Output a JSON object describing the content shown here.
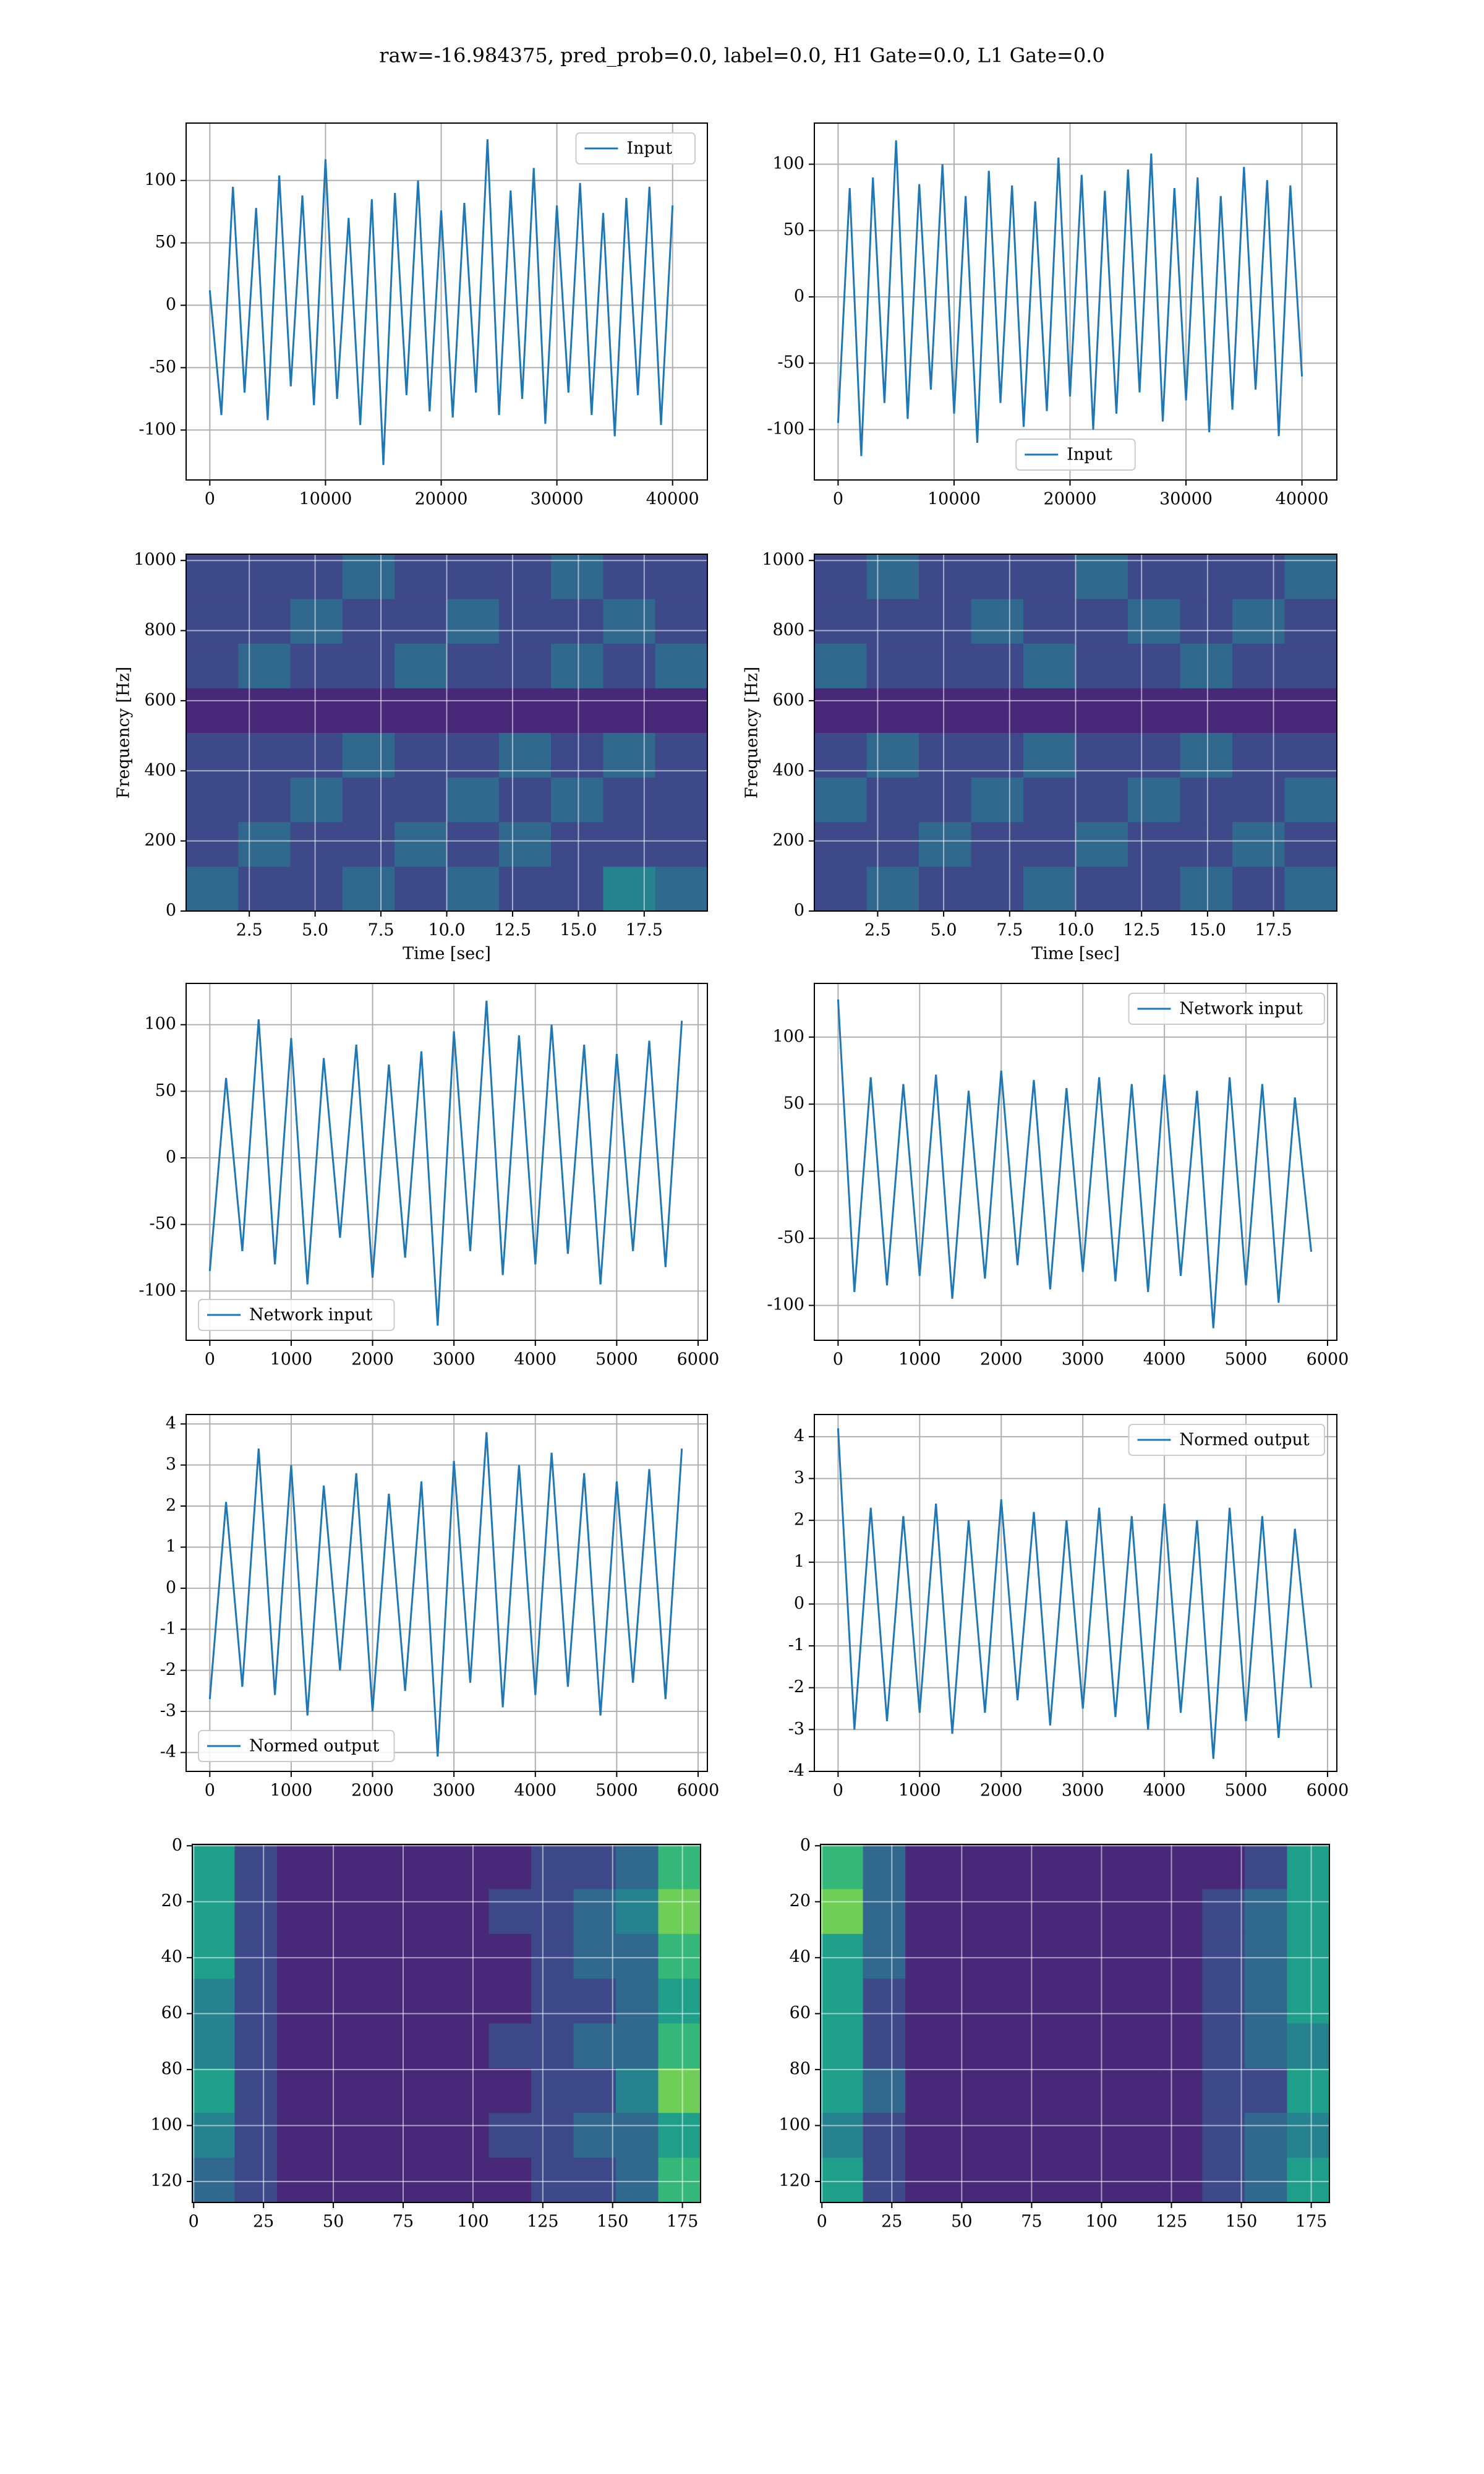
{
  "title": "raw=-16.984375, pred_prob=0.0, label=0.0, H1 Gate=0.0, L1 Gate=0.0",
  "chart_data": [
    {
      "type": "line",
      "x": [
        0,
        1000,
        2000,
        3000,
        4000,
        5000,
        6000,
        7000,
        8000,
        9000,
        10000,
        11000,
        12000,
        13000,
        14000,
        15000,
        16000,
        17000,
        18000,
        19000,
        20000,
        21000,
        22000,
        23000,
        24000,
        25000,
        26000,
        27000,
        28000,
        29000,
        30000,
        31000,
        32000,
        33000,
        34000,
        35000,
        36000,
        37000,
        38000,
        39000,
        40000
      ],
      "series": [
        {
          "name": "Input",
          "color": "#1f77b4",
          "values": [
            12,
            -88,
            95,
            -70,
            78,
            -92,
            104,
            -65,
            88,
            -80,
            117,
            -75,
            70,
            -96,
            85,
            -128,
            90,
            -72,
            100,
            -85,
            76,
            -90,
            82,
            -70,
            133,
            -88,
            92,
            -75,
            110,
            -95,
            80,
            -70,
            98,
            -88,
            74,
            -105,
            86,
            -72,
            95,
            -96,
            80
          ]
        }
      ],
      "xlim": [
        -2048,
        43007
      ],
      "ylim": [
        -140,
        146
      ],
      "xticks": [
        0,
        10000,
        20000,
        30000,
        40000
      ],
      "yticks": [
        -100,
        -50,
        0,
        50,
        100
      ],
      "grid": true,
      "legend": "upper right"
    },
    {
      "type": "line",
      "x": [
        0,
        1000,
        2000,
        3000,
        4000,
        5000,
        6000,
        7000,
        8000,
        9000,
        10000,
        11000,
        12000,
        13000,
        14000,
        15000,
        16000,
        17000,
        18000,
        19000,
        20000,
        21000,
        22000,
        23000,
        24000,
        25000,
        26000,
        27000,
        28000,
        29000,
        30000,
        31000,
        32000,
        33000,
        34000,
        35000,
        36000,
        37000,
        38000,
        39000,
        40000
      ],
      "series": [
        {
          "name": "Input",
          "color": "#1f77b4",
          "values": [
            -95,
            82,
            -120,
            90,
            -80,
            118,
            -92,
            85,
            -70,
            100,
            -88,
            76,
            -110,
            95,
            -80,
            84,
            -98,
            72,
            -86,
            105,
            -75,
            92,
            -100,
            80,
            -88,
            96,
            -72,
            108,
            -94,
            82,
            -78,
            90,
            -102,
            76,
            -85,
            98,
            -70,
            88,
            -105,
            84,
            -60
          ]
        }
      ],
      "xlim": [
        -2048,
        43007
      ],
      "ylim": [
        -138,
        131
      ],
      "xticks": [
        0,
        10000,
        20000,
        30000,
        40000
      ],
      "yticks": [
        -100,
        -50,
        0,
        50,
        100
      ],
      "grid": true,
      "legend": "lower center"
    },
    {
      "type": "heatmap",
      "origin": "lower",
      "colormap": "viridis",
      "xlabel": "Time [sec]",
      "ylabel": "Frequency [Hz]",
      "xlim": [
        0.1,
        19.9
      ],
      "ylim": [
        0,
        1018
      ],
      "xticks": [
        2.5,
        {
          "value": 5,
          "label": "5.0"
        },
        7.5,
        {
          "value": 10,
          "label": "10.0"
        },
        12.5,
        {
          "value": 15,
          "label": "15.0"
        },
        17.5
      ],
      "yticks": [
        0,
        200,
        400,
        600,
        800,
        1000
      ],
      "grid": true,
      "z": [
        [
          0.3,
          0.2,
          0.25,
          0.35,
          0.2,
          0.3,
          0.25,
          0.2,
          0.4,
          0.3
        ],
        [
          0.2,
          0.3,
          0.2,
          0.25,
          0.3,
          0.2,
          0.3,
          0.25,
          0.2,
          0.25
        ],
        [
          0.25,
          0.2,
          0.3,
          0.2,
          0.25,
          0.3,
          0.2,
          0.3,
          0.25,
          0.2
        ],
        [
          0.2,
          0.25,
          0.2,
          0.3,
          0.2,
          0.25,
          0.3,
          0.2,
          0.3,
          0.25
        ],
        [
          0.1,
          0.1,
          0.12,
          0.1,
          0.1,
          0.12,
          0.1,
          0.1,
          0.12,
          0.1
        ],
        [
          0.25,
          0.3,
          0.2,
          0.25,
          0.3,
          0.2,
          0.25,
          0.3,
          0.2,
          0.3
        ],
        [
          0.2,
          0.25,
          0.3,
          0.2,
          0.25,
          0.3,
          0.2,
          0.25,
          0.3,
          0.2
        ],
        [
          0.25,
          0.2,
          0.25,
          0.3,
          0.2,
          0.25,
          0.2,
          0.3,
          0.25,
          0.2
        ]
      ]
    },
    {
      "type": "heatmap",
      "origin": "lower",
      "colormap": "viridis",
      "xlabel": "Time [sec]",
      "ylabel": "Frequency [Hz]",
      "xlim": [
        0.1,
        19.9
      ],
      "ylim": [
        0,
        1018
      ],
      "xticks": [
        2.5,
        {
          "value": 5,
          "label": "5.0"
        },
        7.5,
        {
          "value": 10,
          "label": "10.0"
        },
        12.5,
        {
          "value": 15,
          "label": "15.0"
        },
        17.5
      ],
      "yticks": [
        0,
        200,
        400,
        600,
        800,
        1000
      ],
      "grid": true,
      "z": [
        [
          0.25,
          0.3,
          0.2,
          0.25,
          0.3,
          0.2,
          0.25,
          0.3,
          0.2,
          0.3
        ],
        [
          0.2,
          0.25,
          0.3,
          0.2,
          0.25,
          0.3,
          0.2,
          0.25,
          0.3,
          0.2
        ],
        [
          0.3,
          0.2,
          0.25,
          0.3,
          0.2,
          0.25,
          0.3,
          0.2,
          0.25,
          0.35
        ],
        [
          0.2,
          0.3,
          0.2,
          0.25,
          0.3,
          0.2,
          0.25,
          0.3,
          0.2,
          0.25
        ],
        [
          0.1,
          0.12,
          0.1,
          0.1,
          0.12,
          0.1,
          0.1,
          0.12,
          0.1,
          0.1
        ],
        [
          0.3,
          0.2,
          0.25,
          0.2,
          0.3,
          0.25,
          0.2,
          0.3,
          0.25,
          0.2
        ],
        [
          0.2,
          0.25,
          0.2,
          0.3,
          0.2,
          0.25,
          0.3,
          0.2,
          0.35,
          0.25
        ],
        [
          0.25,
          0.3,
          0.25,
          0.2,
          0.25,
          0.3,
          0.2,
          0.25,
          0.2,
          0.3
        ]
      ]
    },
    {
      "type": "line",
      "x": [
        0,
        200,
        400,
        600,
        800,
        1000,
        1200,
        1400,
        1600,
        1800,
        2000,
        2200,
        2400,
        2600,
        2800,
        3000,
        3200,
        3400,
        3600,
        3800,
        4000,
        4200,
        4400,
        4600,
        4800,
        5000,
        5200,
        5400,
        5600,
        5800
      ],
      "series": [
        {
          "name": "Network input",
          "color": "#1f77b4",
          "values": [
            -85,
            60,
            -70,
            104,
            -80,
            90,
            -95,
            75,
            -60,
            85,
            -90,
            70,
            -75,
            80,
            -126,
            95,
            -70,
            118,
            -88,
            92,
            -80,
            100,
            -72,
            85,
            -95,
            78,
            -70,
            88,
            -82,
            103
          ]
        }
      ],
      "xlim": [
        -291,
        6114
      ],
      "ylim": [
        -137,
        131
      ],
      "xticks": [
        0,
        1000,
        2000,
        3000,
        4000,
        5000,
        6000
      ],
      "yticks": [
        -100,
        -50,
        0,
        50,
        100
      ],
      "grid": true,
      "legend": "lower left"
    },
    {
      "type": "line",
      "x": [
        0,
        200,
        400,
        600,
        800,
        1000,
        1200,
        1400,
        1600,
        1800,
        2000,
        2200,
        2400,
        2600,
        2800,
        3000,
        3200,
        3400,
        3600,
        3800,
        4000,
        4200,
        4400,
        4600,
        4800,
        5000,
        5200,
        5400,
        5600,
        5800
      ],
      "series": [
        {
          "name": "Network input",
          "color": "#1f77b4",
          "values": [
            128,
            -90,
            70,
            -85,
            65,
            -78,
            72,
            -95,
            60,
            -80,
            75,
            -70,
            68,
            -88,
            62,
            -75,
            70,
            -82,
            65,
            -90,
            72,
            -78,
            60,
            -117,
            70,
            -85,
            65,
            -98,
            55,
            -60
          ]
        }
      ],
      "xlim": [
        -291,
        6114
      ],
      "ylim": [
        -126,
        140
      ],
      "xticks": [
        0,
        1000,
        2000,
        3000,
        4000,
        5000,
        6000
      ],
      "yticks": [
        -100,
        -50,
        0,
        50,
        100
      ],
      "grid": true,
      "legend": "upper right"
    },
    {
      "type": "line",
      "x": [
        0,
        200,
        400,
        600,
        800,
        1000,
        1200,
        1400,
        1600,
        1800,
        2000,
        2200,
        2400,
        2600,
        2800,
        3000,
        3200,
        3400,
        3600,
        3800,
        4000,
        4200,
        4400,
        4600,
        4800,
        5000,
        5200,
        5400,
        5600,
        5800
      ],
      "series": [
        {
          "name": "Normed output",
          "color": "#1f77b4",
          "values": [
            -2.7,
            2.1,
            -2.4,
            3.4,
            -2.6,
            3.0,
            -3.1,
            2.5,
            -2.0,
            2.8,
            -3.0,
            2.3,
            -2.5,
            2.6,
            -4.1,
            3.1,
            -2.3,
            3.8,
            -2.9,
            3.0,
            -2.6,
            3.3,
            -2.4,
            2.8,
            -3.1,
            2.6,
            -2.3,
            2.9,
            -2.7,
            3.4
          ]
        }
      ],
      "xlim": [
        -291,
        6114
      ],
      "ylim": [
        -4.46,
        4.23
      ],
      "xticks": [
        0,
        1000,
        2000,
        3000,
        4000,
        5000,
        6000
      ],
      "yticks": [
        -4,
        -3,
        -2,
        -1,
        0,
        1,
        2,
        3,
        4
      ],
      "grid": true,
      "legend": "lower left"
    },
    {
      "type": "line",
      "x": [
        0,
        200,
        400,
        600,
        800,
        1000,
        1200,
        1400,
        1600,
        1800,
        2000,
        2200,
        2400,
        2600,
        2800,
        3000,
        3200,
        3400,
        3600,
        3800,
        4000,
        4200,
        4400,
        4600,
        4800,
        5000,
        5200,
        5400,
        5600,
        5800
      ],
      "series": [
        {
          "name": "Normed output",
          "color": "#1f77b4",
          "values": [
            4.2,
            -3.0,
            2.3,
            -2.8,
            2.1,
            -2.6,
            2.4,
            -3.1,
            2.0,
            -2.6,
            2.5,
            -2.3,
            2.2,
            -2.9,
            2.0,
            -2.5,
            2.3,
            -2.7,
            2.1,
            -3.0,
            2.4,
            -2.6,
            2.0,
            -3.7,
            2.3,
            -2.8,
            2.1,
            -3.2,
            1.8,
            -2.0
          ]
        }
      ],
      "xlim": [
        -291,
        6114
      ],
      "ylim": [
        -4.0,
        4.53
      ],
      "xticks": [
        0,
        1000,
        2000,
        3000,
        4000,
        5000,
        6000
      ],
      "yticks": [
        -4,
        -3,
        -2,
        -1,
        0,
        1,
        2,
        3,
        4
      ],
      "grid": true,
      "legend": "upper right"
    },
    {
      "type": "heatmap",
      "origin": "upper",
      "colormap": "viridis",
      "xlim": [
        -0.5,
        181.5
      ],
      "ylim": [
        127.5,
        -0.5
      ],
      "xticks": [
        0,
        25,
        50,
        75,
        100,
        125,
        150,
        175
      ],
      "yticks": [
        0,
        20,
        40,
        60,
        80,
        100,
        120
      ],
      "grid": true,
      "z": [
        [
          0.5,
          0.2,
          0.15,
          0.12,
          0.12,
          0.1,
          0.12,
          0.15,
          0.2,
          0.25,
          0.35,
          0.7
        ],
        [
          0.6,
          0.25,
          0.15,
          0.12,
          0.1,
          0.12,
          0.15,
          0.2,
          0.25,
          0.3,
          0.4,
          0.8
        ],
        [
          0.55,
          0.2,
          0.12,
          0.1,
          0.12,
          0.1,
          0.12,
          0.15,
          0.2,
          0.3,
          0.35,
          0.65
        ],
        [
          0.4,
          0.2,
          0.15,
          0.12,
          0.1,
          0.12,
          0.1,
          0.15,
          0.2,
          0.25,
          0.3,
          0.6
        ],
        [
          0.45,
          0.25,
          0.12,
          0.1,
          0.12,
          0.1,
          0.12,
          0.2,
          0.2,
          0.3,
          0.35,
          0.7
        ],
        [
          0.5,
          0.2,
          0.15,
          0.12,
          0.1,
          0.12,
          0.15,
          0.15,
          0.25,
          0.25,
          0.4,
          0.75
        ],
        [
          0.4,
          0.2,
          0.12,
          0.1,
          0.12,
          0.1,
          0.12,
          0.2,
          0.2,
          0.3,
          0.35,
          0.6
        ],
        [
          0.35,
          0.2,
          0.12,
          0.12,
          0.1,
          0.12,
          0.12,
          0.15,
          0.2,
          0.25,
          0.35,
          0.65
        ]
      ]
    },
    {
      "type": "heatmap",
      "origin": "upper",
      "colormap": "viridis",
      "xlim": [
        -0.5,
        181.5
      ],
      "ylim": [
        127.5,
        -0.5
      ],
      "xticks": [
        0,
        25,
        50,
        75,
        100,
        125,
        150,
        175
      ],
      "yticks": [
        0,
        20,
        40,
        60,
        80,
        100,
        120
      ],
      "grid": true,
      "z": [
        [
          0.7,
          0.3,
          0.15,
          0.12,
          0.1,
          0.1,
          0.12,
          0.1,
          0.12,
          0.15,
          0.25,
          0.5
        ],
        [
          0.75,
          0.35,
          0.15,
          0.12,
          0.1,
          0.12,
          0.1,
          0.12,
          0.12,
          0.2,
          0.3,
          0.55
        ],
        [
          0.6,
          0.3,
          0.12,
          0.1,
          0.12,
          0.1,
          0.12,
          0.1,
          0.15,
          0.2,
          0.3,
          0.5
        ],
        [
          0.55,
          0.25,
          0.15,
          0.12,
          0.1,
          0.12,
          0.1,
          0.12,
          0.12,
          0.2,
          0.35,
          0.6
        ],
        [
          0.5,
          0.25,
          0.12,
          0.1,
          0.12,
          0.1,
          0.1,
          0.12,
          0.15,
          0.2,
          0.3,
          0.45
        ],
        [
          0.6,
          0.3,
          0.15,
          0.12,
          0.1,
          0.12,
          0.12,
          0.1,
          0.12,
          0.2,
          0.25,
          0.5
        ],
        [
          0.45,
          0.2,
          0.12,
          0.1,
          0.12,
          0.1,
          0.1,
          0.12,
          0.15,
          0.2,
          0.3,
          0.45
        ],
        [
          0.5,
          0.25,
          0.15,
          0.12,
          0.1,
          0.12,
          0.12,
          0.1,
          0.12,
          0.2,
          0.3,
          0.6
        ]
      ]
    }
  ]
}
